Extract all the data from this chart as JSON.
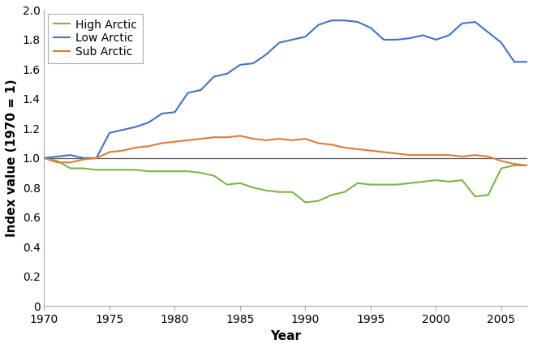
{
  "years": [
    1970,
    1971,
    1972,
    1973,
    1974,
    1975,
    1976,
    1977,
    1978,
    1979,
    1980,
    1981,
    1982,
    1983,
    1984,
    1985,
    1986,
    1987,
    1988,
    1989,
    1990,
    1991,
    1992,
    1993,
    1994,
    1995,
    1996,
    1997,
    1998,
    1999,
    2000,
    2001,
    2002,
    2003,
    2004,
    2005,
    2006,
    2007
  ],
  "high_arctic": [
    1.0,
    0.98,
    0.93,
    0.93,
    0.92,
    0.92,
    0.92,
    0.92,
    0.91,
    0.91,
    0.91,
    0.91,
    0.9,
    0.88,
    0.82,
    0.83,
    0.8,
    0.78,
    0.77,
    0.77,
    0.7,
    0.71,
    0.75,
    0.77,
    0.83,
    0.82,
    0.82,
    0.82,
    0.83,
    0.84,
    0.85,
    0.84,
    0.85,
    0.74,
    0.75,
    0.93,
    0.95,
    0.95
  ],
  "low_arctic": [
    1.0,
    1.01,
    1.02,
    1.0,
    1.0,
    1.17,
    1.19,
    1.21,
    1.24,
    1.3,
    1.31,
    1.44,
    1.46,
    1.55,
    1.57,
    1.63,
    1.64,
    1.7,
    1.78,
    1.8,
    1.82,
    1.9,
    1.93,
    1.93,
    1.92,
    1.88,
    1.8,
    1.8,
    1.81,
    1.83,
    1.8,
    1.83,
    1.91,
    1.92,
    1.85,
    1.78,
    1.65,
    1.65
  ],
  "sub_arctic": [
    1.0,
    0.97,
    0.97,
    0.99,
    1.0,
    1.04,
    1.05,
    1.07,
    1.08,
    1.1,
    1.11,
    1.12,
    1.13,
    1.14,
    1.14,
    1.15,
    1.13,
    1.12,
    1.13,
    1.12,
    1.13,
    1.1,
    1.09,
    1.07,
    1.06,
    1.05,
    1.04,
    1.03,
    1.02,
    1.02,
    1.02,
    1.02,
    1.01,
    1.02,
    1.01,
    0.98,
    0.96,
    0.95
  ],
  "high_arctic_color": "#7ab648",
  "low_arctic_color": "#4472c4",
  "sub_arctic_color": "#e07b39",
  "baseline_color": "#555555",
  "xlabel": "Year",
  "ylabel": "Index value (1970 = 1)",
  "xlim": [
    1970,
    2007
  ],
  "ylim": [
    0,
    2
  ],
  "yticks": [
    0,
    0.2,
    0.4,
    0.6,
    0.8,
    1.0,
    1.2,
    1.4,
    1.6,
    1.8,
    2.0
  ],
  "xticks": [
    1970,
    1975,
    1980,
    1985,
    1990,
    1995,
    2000,
    2005
  ],
  "legend_labels": [
    "High Arctic",
    "Low Arctic",
    "Sub Arctic"
  ],
  "linewidth": 1.5,
  "spine_color": "#aaaaaa",
  "tick_label_fontsize": 10,
  "axis_label_fontsize": 11
}
